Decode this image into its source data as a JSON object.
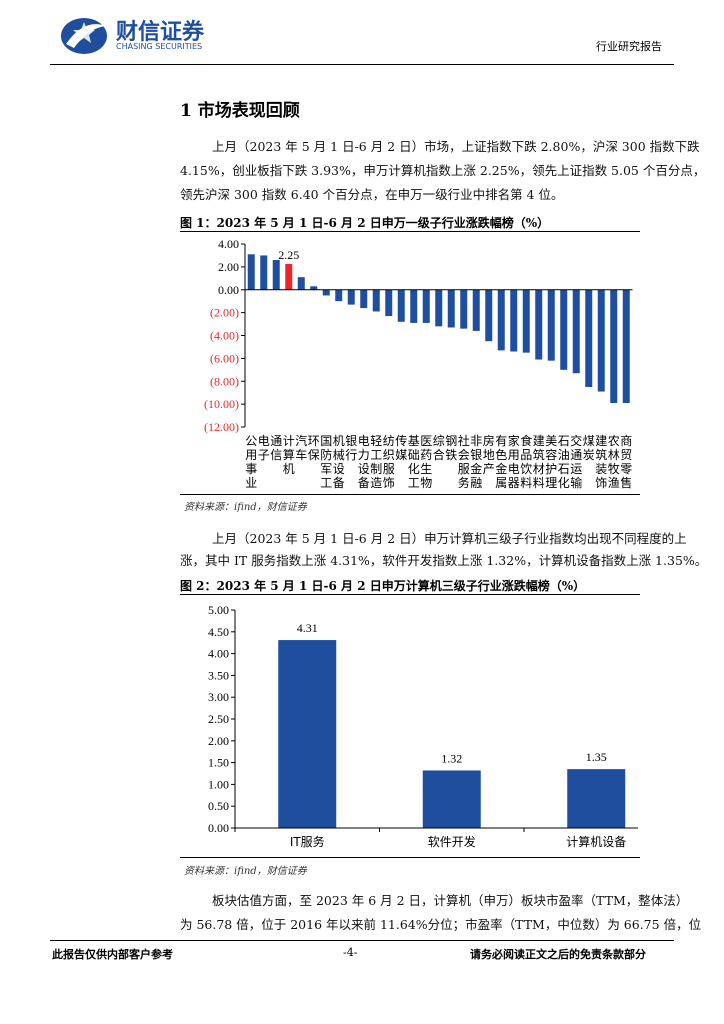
{
  "header": {
    "logo_name": "财信证券",
    "logo_sub": "CHASING SECURITIES",
    "report_type": "行业研究报告"
  },
  "section_title": "1 市场表现回顾",
  "paragraphs": [
    [
      "上月（2023 年 5 月 1 日-6 月 2 日）市场，上证指数下跌 2.80%，沪深 300 指数下跌",
      "4.15%，创业板指下跌 3.93%，申万计算机指数上涨 2.25%，领先上证指数 5.05 个百分点，",
      "领先沪深 300 指数 6.40 个百分点，在申万一级行业中排名第 4 位。"
    ],
    [
      "上月（2023 年 5 月 1 日-6 月 2 日）申万计算机三级子行业指数均出现不同程度的上",
      "涨，其中 IT 服务指数上涨 4.31%，软件开发指数上涨 1.32%，计算机设备指数上涨 1.35%。"
    ],
    [
      "板块估值方面，至 2023 年 6 月 2 日，计算机（申万）板块市盈率（TTM，整体法）",
      "为 56.78 倍，位于 2016 年以来前 11.64%分位；市盈率（TTM，中位数）为 66.75 倍，位"
    ]
  ],
  "chart_data": [
    {
      "type": "bar",
      "title": "图 1：2023 年 5 月 1 日-6 月 2 日申万一级子行业涨跌幅榜（%）",
      "source": "资料来源：ifind，财信证券",
      "categories": [
        "公用事业",
        "电子",
        "通信",
        "计算机",
        "汽车",
        "环保",
        "国防军工",
        "机械设备",
        "银行",
        "电力设备",
        "轻工制造",
        "纺织服饰",
        "传媒",
        "基础化工",
        "医药生物",
        "综合",
        "钢铁",
        "社会服务",
        "非银金融",
        "房地产",
        "有色金属",
        "家用电器",
        "食品饮料",
        "建筑材料",
        "美容护理",
        "石油石化",
        "交通运输",
        "煤炭",
        "建筑装饰",
        "农林牧渔",
        "商贸零售"
      ],
      "values": [
        3.1,
        3.0,
        2.6,
        2.25,
        1.1,
        0.3,
        -0.5,
        -1.0,
        -1.3,
        -1.6,
        -1.9,
        -2.3,
        -2.8,
        -2.9,
        -2.9,
        -3.2,
        -3.3,
        -3.4,
        -3.6,
        -4.5,
        -5.3,
        -5.4,
        -5.5,
        -6.1,
        -6.2,
        -7.0,
        -7.3,
        -8.5,
        -8.9,
        -9.9,
        -9.9
      ],
      "color": "#1f4e9e",
      "highlight": {
        "index": 3,
        "color": "#e8262b"
      },
      "ylim": [
        -12,
        4
      ],
      "yticks": [
        {
          "value": 4,
          "label": "4.00"
        },
        {
          "value": 2,
          "label": "2.00"
        },
        {
          "value": 0,
          "label": "0.00"
        },
        {
          "value": -2,
          "label": "(2.00)"
        },
        {
          "value": -4,
          "label": "(4.00)"
        },
        {
          "value": -6,
          "label": "(6.00)"
        },
        {
          "value": -8,
          "label": "(8.00)"
        },
        {
          "value": -10,
          "label": "(10.00)"
        },
        {
          "value": -12,
          "label": "(12.00)"
        }
      ],
      "negative_tick_color": "#e8262b",
      "grid": false
    },
    {
      "type": "bar",
      "title": "图 2：2023 年 5 月 1 日-6 月 2 日申万计算机三级子行业涨跌幅榜（%）",
      "source": "资料来源：ifind，财信证券",
      "categories": [
        "IT服务",
        "软件开发",
        "计算机设备"
      ],
      "values": [
        4.31,
        1.32,
        1.35
      ],
      "color": "#1f4e9e",
      "ylim": [
        0,
        5
      ],
      "yticks": [
        {
          "value": 5,
          "label": "5.00"
        },
        {
          "value": 4.5,
          "label": "4.50"
        },
        {
          "value": 4,
          "label": "4.00"
        },
        {
          "value": 3.5,
          "label": "3.50"
        },
        {
          "value": 3,
          "label": "3.00"
        },
        {
          "value": 2.5,
          "label": "2.50"
        },
        {
          "value": 2,
          "label": "2.00"
        },
        {
          "value": 1.5,
          "label": "1.50"
        },
        {
          "value": 1,
          "label": "1.00"
        },
        {
          "value": 0.5,
          "label": "0.50"
        },
        {
          "value": 0,
          "label": "0.00"
        }
      ],
      "grid": false
    }
  ],
  "footer": {
    "left": "此报告仅供内部客户参考",
    "page": "-4-",
    "right": "请务必阅读正文之后的免责条款部分"
  }
}
